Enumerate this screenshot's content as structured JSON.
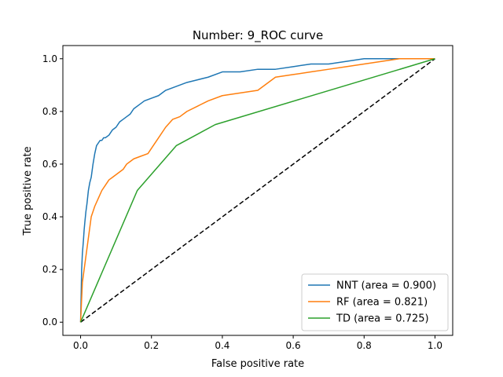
{
  "chart_data": {
    "type": "line",
    "title": "Number: 9_ROC curve",
    "xlabel": "False positive rate",
    "ylabel": "True positive rate",
    "xlim": [
      -0.05,
      1.05
    ],
    "ylim": [
      -0.05,
      1.05
    ],
    "xticks": [
      "0.0",
      "0.2",
      "0.4",
      "0.6",
      "0.8",
      "1.0"
    ],
    "yticks": [
      "0.0",
      "0.2",
      "0.4",
      "0.6",
      "0.8",
      "1.0"
    ],
    "grid": false,
    "legend_position": "lower right",
    "diagonal": {
      "x": [
        0,
        1
      ],
      "y": [
        0,
        1
      ],
      "style": "dashed",
      "color": "#000000"
    },
    "series": [
      {
        "name": "NNT (area = 0.900)",
        "color": "#1f77b4",
        "x": [
          0,
          0.003,
          0.005,
          0.008,
          0.01,
          0.012,
          0.015,
          0.018,
          0.022,
          0.026,
          0.03,
          0.035,
          0.04,
          0.045,
          0.05,
          0.055,
          0.06,
          0.065,
          0.07,
          0.08,
          0.09,
          0.1,
          0.11,
          0.12,
          0.13,
          0.14,
          0.15,
          0.17,
          0.18,
          0.2,
          0.22,
          0.24,
          0.26,
          0.28,
          0.3,
          0.33,
          0.36,
          0.4,
          0.45,
          0.5,
          0.55,
          0.6,
          0.65,
          0.7,
          0.75,
          0.8,
          0.85,
          0.9,
          0.95,
          1.0
        ],
        "y": [
          0,
          0.2,
          0.26,
          0.31,
          0.35,
          0.38,
          0.42,
          0.45,
          0.5,
          0.53,
          0.55,
          0.6,
          0.64,
          0.67,
          0.68,
          0.69,
          0.69,
          0.7,
          0.7,
          0.71,
          0.73,
          0.74,
          0.76,
          0.77,
          0.78,
          0.79,
          0.81,
          0.83,
          0.84,
          0.85,
          0.86,
          0.88,
          0.89,
          0.9,
          0.91,
          0.92,
          0.93,
          0.95,
          0.95,
          0.96,
          0.96,
          0.97,
          0.98,
          0.98,
          0.99,
          1.0,
          1.0,
          1.0,
          1.0,
          1.0
        ]
      },
      {
        "name": "RF (area = 0.821)",
        "color": "#ff7f0e",
        "x": [
          0,
          0.005,
          0.01,
          0.015,
          0.02,
          0.025,
          0.03,
          0.035,
          0.04,
          0.05,
          0.06,
          0.07,
          0.08,
          0.09,
          0.1,
          0.11,
          0.12,
          0.13,
          0.14,
          0.15,
          0.17,
          0.19,
          0.2,
          0.22,
          0.24,
          0.26,
          0.28,
          0.3,
          0.33,
          0.36,
          0.4,
          0.45,
          0.5,
          0.55,
          0.6,
          0.65,
          0.7,
          0.75,
          0.8,
          0.85,
          0.9,
          0.95,
          1.0
        ],
        "y": [
          0,
          0.15,
          0.2,
          0.25,
          0.3,
          0.35,
          0.4,
          0.42,
          0.44,
          0.47,
          0.5,
          0.52,
          0.54,
          0.55,
          0.56,
          0.57,
          0.58,
          0.6,
          0.61,
          0.62,
          0.63,
          0.64,
          0.66,
          0.7,
          0.74,
          0.77,
          0.78,
          0.8,
          0.82,
          0.84,
          0.86,
          0.87,
          0.88,
          0.93,
          0.94,
          0.95,
          0.96,
          0.97,
          0.98,
          0.99,
          1.0,
          1.0,
          1.0
        ]
      },
      {
        "name": "TD (area = 0.725)",
        "color": "#2ca02c",
        "x": [
          0,
          0.16,
          0.27,
          0.38,
          1.0
        ],
        "y": [
          0,
          0.5,
          0.67,
          0.75,
          1.0
        ]
      }
    ]
  }
}
